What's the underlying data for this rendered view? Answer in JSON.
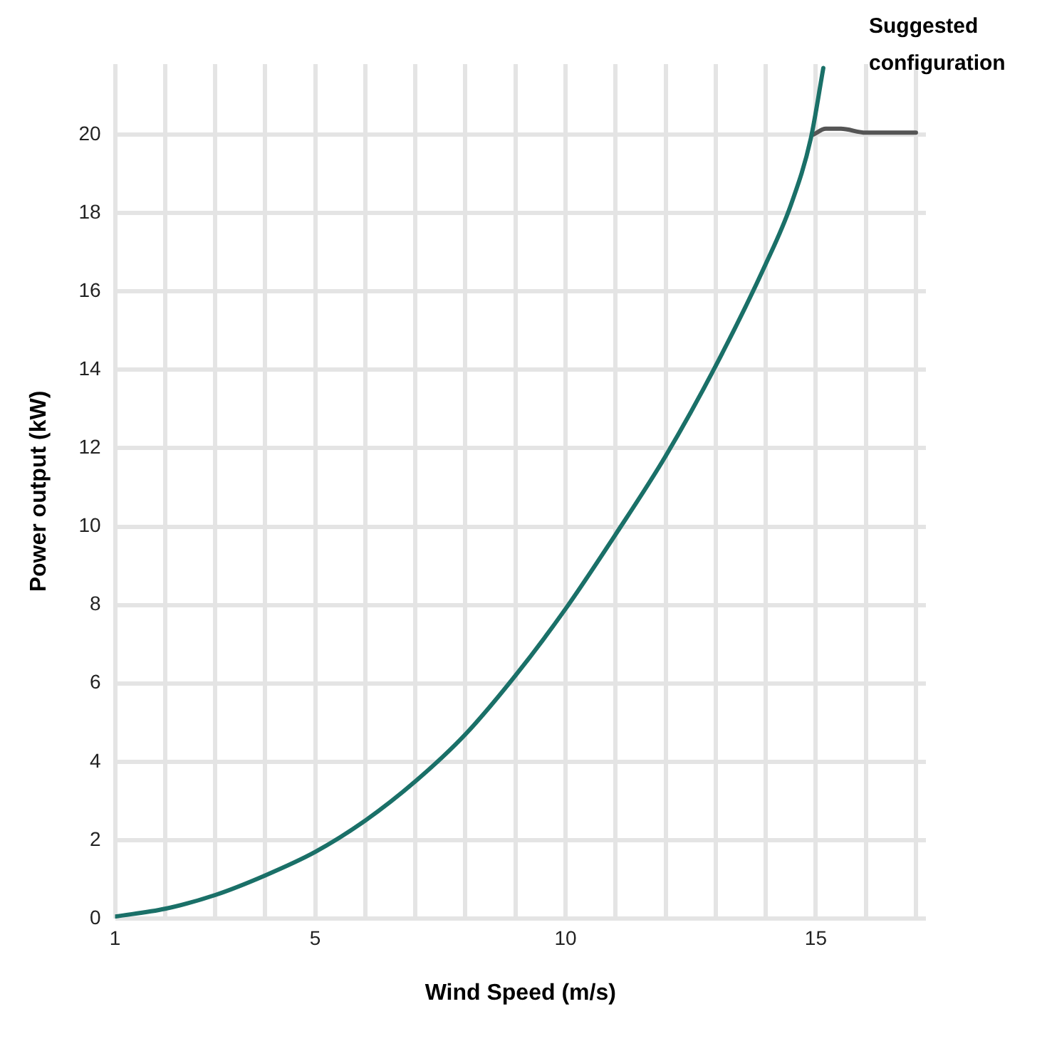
{
  "chart_data": {
    "type": "line",
    "xlabel": "Wind Speed (m/s)",
    "ylabel": "Power output (kW)",
    "xlim": [
      1,
      17.2
    ],
    "ylim": [
      0,
      21.8
    ],
    "xticks": [
      1,
      {
        "value": 2,
        "label": null
      },
      {
        "value": 3,
        "label": null
      },
      {
        "value": 4,
        "label": null
      },
      5,
      {
        "value": 6,
        "label": null
      },
      {
        "value": 7,
        "label": null
      },
      {
        "value": 8,
        "label": null
      },
      {
        "value": 9,
        "label": null
      },
      10,
      {
        "value": 11,
        "label": null
      },
      {
        "value": 12,
        "label": null
      },
      {
        "value": 13,
        "label": null
      },
      {
        "value": 14,
        "label": null
      },
      15,
      {
        "value": 16,
        "label": null
      },
      {
        "value": 17,
        "label": null
      }
    ],
    "yticks": [
      0,
      2,
      4,
      6,
      8,
      10,
      12,
      14,
      16,
      18,
      20
    ],
    "grid": true,
    "marker": "none",
    "line_style": "solid",
    "series": [
      {
        "color": "#1a7068",
        "x": [
          1,
          2,
          3,
          4,
          5,
          6,
          7,
          8,
          9,
          10,
          11,
          12,
          13,
          14,
          14.5,
          14.9,
          15.15
        ],
        "values": [
          0.05,
          0.25,
          0.6,
          1.1,
          1.7,
          2.5,
          3.5,
          4.7,
          6.2,
          7.9,
          9.8,
          11.8,
          14.1,
          16.7,
          18.2,
          19.9,
          21.7
        ]
      },
      {
        "name": "Suggested configuration",
        "color": "#555555",
        "x": [
          14.95,
          15.2,
          15.5,
          16,
          17
        ],
        "values": [
          20,
          20.15,
          20.15,
          20.05,
          20.05
        ]
      }
    ]
  }
}
